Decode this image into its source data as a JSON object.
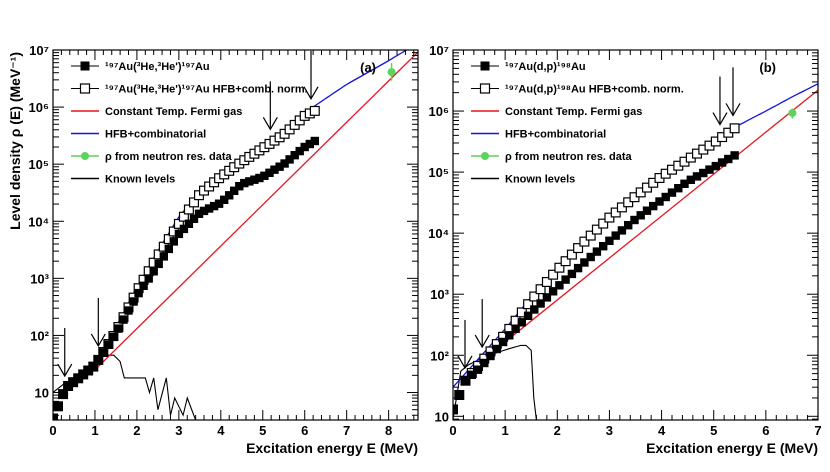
{
  "chart_data": [
    {
      "type": "scatter",
      "panel_label": "(a)",
      "title": "",
      "xlabel": "Excitation energy E (MeV)",
      "ylabel": "Level density ρ (E) (MeV⁻¹)",
      "xlim": [
        0,
        8.7
      ],
      "ylim": [
        3.3,
        10000000
      ],
      "yscale": "log",
      "x_ticks": [
        0,
        1,
        2,
        3,
        4,
        5,
        6,
        7,
        8
      ],
      "y_ticks": [
        {
          "value": 10,
          "label": "10"
        },
        {
          "value": 100,
          "label": "10²"
        },
        {
          "value": 1000,
          "label": "10³"
        },
        {
          "value": 10000,
          "label": "10⁴"
        },
        {
          "value": 100000,
          "label": "10⁵"
        },
        {
          "value": 1000000,
          "label": "10⁶"
        },
        {
          "value": 10000000,
          "label": "10⁷"
        }
      ],
      "legend_position": "top-left",
      "legend": [
        {
          "key": "exp",
          "symbol": "filled-square",
          "color": "#000000",
          "label": "¹⁹⁷Au(³He,³He')¹⁹⁷Au"
        },
        {
          "key": "hfb_norm",
          "symbol": "open-square",
          "color": "#000000",
          "label": "¹⁹⁷Au(³He,³He')¹⁹⁷Au HFB+comb. norm."
        },
        {
          "key": "ctf",
          "symbol": "line",
          "color": "#e8141c",
          "label": "Constant Temp. Fermi gas"
        },
        {
          "key": "hfb",
          "symbol": "line",
          "color": "#1414dc",
          "label": "HFB+combinatorial"
        },
        {
          "key": "rho_n",
          "symbol": "circle",
          "color": "#5ad45a",
          "label": "ρ from neutron res. data"
        },
        {
          "key": "known",
          "symbol": "line",
          "color": "#000000",
          "label": "Known levels"
        }
      ],
      "series": [
        {
          "key": "exp",
          "name": "¹⁹⁷Au(³He,³He')¹⁹⁷Au",
          "marker": "filled-square",
          "x_start": 0.0,
          "x_end": 6.3,
          "points": [
            [
              0,
              3.5
            ],
            [
              0.3,
              12
            ],
            [
              1.0,
              30
            ],
            [
              1.5,
              110
            ],
            [
              2.0,
              500
            ],
            [
              2.5,
              1700
            ],
            [
              3.0,
              6000
            ],
            [
              3.5,
              14000
            ],
            [
              4.0,
              21000
            ],
            [
              4.5,
              45000
            ],
            [
              5.0,
              60000
            ],
            [
              5.5,
              100000
            ],
            [
              6.0,
              200000
            ],
            [
              6.3,
              270000
            ]
          ]
        },
        {
          "key": "hfb_norm",
          "name": "¹⁹⁷Au(³He,³He')¹⁹⁷Au HFB+comb. norm.",
          "marker": "open-square",
          "x_start": 0.0,
          "x_end": 6.3,
          "points": [
            [
              0,
              3.5
            ],
            [
              0.3,
              12
            ],
            [
              1.0,
              30
            ],
            [
              1.5,
              115
            ],
            [
              2.0,
              600
            ],
            [
              2.5,
              2500
            ],
            [
              3.0,
              9000
            ],
            [
              3.5,
              30000
            ],
            [
              4.0,
              60000
            ],
            [
              4.5,
              110000
            ],
            [
              5.0,
              190000
            ],
            [
              5.5,
              330000
            ],
            [
              6.0,
              700000
            ],
            [
              6.3,
              900000
            ]
          ]
        },
        {
          "key": "ctf",
          "name": "Constant Temp. Fermi gas",
          "line": "#e8141c",
          "x": [
            1.0,
            8.7
          ],
          "y": [
            25,
            9200000
          ]
        },
        {
          "key": "hfb",
          "name": "HFB+combinatorial",
          "line": "#1414dc",
          "points": [
            [
              1.0,
              28
            ],
            [
              1.5,
              140
            ],
            [
              2.0,
              700
            ],
            [
              2.5,
              3000
            ],
            [
              3.0,
              12000
            ],
            [
              3.5,
              32000
            ],
            [
              4.0,
              70000
            ],
            [
              5.0,
              190000
            ],
            [
              6.0,
              800000
            ],
            [
              7.0,
              2500000
            ],
            [
              8.0,
              6500000
            ],
            [
              8.6,
              12000000
            ]
          ]
        },
        {
          "key": "rho_n",
          "name": "ρ from neutron res. data",
          "x": 8.07,
          "y": 4100000,
          "err_low": 2900000,
          "err_high": 5900000
        },
        {
          "key": "known",
          "name": "Known levels",
          "points": [
            [
              0.0,
              10
            ],
            [
              0.25,
              14
            ],
            [
              0.4,
              12
            ],
            [
              0.6,
              18
            ],
            [
              0.8,
              25
            ],
            [
              1.0,
              35
            ],
            [
              1.2,
              45
            ],
            [
              1.45,
              45
            ],
            [
              1.6,
              35
            ],
            [
              1.7,
              18
            ],
            [
              2.2,
              18
            ],
            [
              2.3,
              10
            ],
            [
              2.4,
              18
            ],
            [
              2.5,
              5
            ],
            [
              2.7,
              18
            ],
            [
              2.8,
              4
            ],
            [
              2.9,
              8
            ],
            [
              3.1,
              4
            ],
            [
              3.2,
              8
            ],
            [
              3.4,
              3.3
            ]
          ]
        }
      ],
      "arrows_x": [
        0.28,
        1.08,
        5.18,
        6.15
      ]
    },
    {
      "type": "scatter",
      "panel_label": "(b)",
      "title": "",
      "xlabel": "Excitation energy E (MeV)",
      "ylabel": "",
      "xlim": [
        0,
        7
      ],
      "ylim": [
        8.7,
        10000000
      ],
      "yscale": "log",
      "x_ticks": [
        0,
        1,
        2,
        3,
        4,
        5,
        6,
        7
      ],
      "y_ticks": [
        {
          "value": 10,
          "label": "10"
        },
        {
          "value": 100,
          "label": "10²"
        },
        {
          "value": 1000,
          "label": "10³"
        },
        {
          "value": 10000,
          "label": "10⁴"
        },
        {
          "value": 100000,
          "label": "10⁵"
        },
        {
          "value": 1000000,
          "label": "10⁶"
        },
        {
          "value": 10000000,
          "label": "10⁷"
        }
      ],
      "legend_position": "top-left",
      "legend": [
        {
          "key": "exp",
          "symbol": "filled-square",
          "color": "#000000",
          "label": "¹⁹⁷Au(d,p)¹⁹⁸Au"
        },
        {
          "key": "hfb_norm",
          "symbol": "open-square",
          "color": "#000000",
          "label": "¹⁹⁷Au(d,p)¹⁹⁸Au HFB+comb. norm."
        },
        {
          "key": "ctf",
          "symbol": "line",
          "color": "#e8141c",
          "label": "Constant Temp. Fermi gas"
        },
        {
          "key": "hfb",
          "symbol": "line",
          "color": "#1414dc",
          "label": "HFB+combinatorial"
        },
        {
          "key": "rho_n",
          "symbol": "circle",
          "color": "#5ad45a",
          "label": "ρ from neutron res. data"
        },
        {
          "key": "known",
          "symbol": "line",
          "color": "#000000",
          "label": "Known levels"
        }
      ],
      "series": [
        {
          "key": "exp",
          "name": "¹⁹⁷Au(d,p)¹⁹⁸Au",
          "marker": "filled-square",
          "x_start": 0.0,
          "x_end": 5.5,
          "points": [
            [
              0,
              13
            ],
            [
              0.25,
              40
            ],
            [
              0.5,
              60
            ],
            [
              1.0,
              180
            ],
            [
              1.5,
              500
            ],
            [
              2.0,
              1300
            ],
            [
              2.5,
              3200
            ],
            [
              3.0,
              7500
            ],
            [
              3.5,
              17000
            ],
            [
              4.0,
              35000
            ],
            [
              4.5,
              70000
            ],
            [
              5.0,
              120000
            ],
            [
              5.5,
              210000
            ]
          ]
        },
        {
          "key": "hfb_norm",
          "name": "¹⁹⁷Au(d,p)¹⁹⁸Au HFB+comb. norm.",
          "marker": "open-square",
          "x_start": 0.0,
          "x_end": 5.5,
          "points": [
            [
              0,
              13
            ],
            [
              0.25,
              40
            ],
            [
              0.5,
              70
            ],
            [
              1.0,
              220
            ],
            [
              1.5,
              800
            ],
            [
              2.0,
              2500
            ],
            [
              2.5,
              7000
            ],
            [
              3.0,
              18000
            ],
            [
              3.5,
              40000
            ],
            [
              4.0,
              85000
            ],
            [
              4.5,
              160000
            ],
            [
              5.0,
              300000
            ],
            [
              5.5,
              600000
            ]
          ]
        },
        {
          "key": "ctf",
          "name": "Constant Temp. Fermi gas",
          "line": "#e8141c",
          "x": [
            0.5,
            7.0
          ],
          "y": [
            75,
            2200000
          ]
        },
        {
          "key": "hfb",
          "name": "HFB+combinatorial",
          "line": "#1414dc",
          "points": [
            [
              0.0,
              30
            ],
            [
              0.5,
              90
            ],
            [
              1.0,
              270
            ],
            [
              1.5,
              900
            ],
            [
              2.0,
              2800
            ],
            [
              2.5,
              7500
            ],
            [
              3.0,
              19000
            ],
            [
              3.5,
              45000
            ],
            [
              4.0,
              95000
            ],
            [
              4.5,
              180000
            ],
            [
              5.0,
              340000
            ],
            [
              5.5,
              600000
            ],
            [
              6.0,
              1000000
            ],
            [
              6.5,
              1700000
            ],
            [
              7.0,
              2800000
            ]
          ]
        },
        {
          "key": "rho_n",
          "name": "ρ from neutron res. data",
          "x": 6.51,
          "y": 930000,
          "err_low": 750000,
          "err_high": 1100000
        },
        {
          "key": "known",
          "name": "Known levels",
          "points": [
            [
              0.0,
              9
            ],
            [
              0.15,
              55
            ],
            [
              0.3,
              70
            ],
            [
              0.5,
              85
            ],
            [
              0.7,
              100
            ],
            [
              0.9,
              115
            ],
            [
              1.1,
              130
            ],
            [
              1.3,
              145
            ],
            [
              1.4,
              145
            ],
            [
              1.5,
              120
            ],
            [
              1.55,
              20
            ],
            [
              1.6,
              8.7
            ]
          ]
        }
      ],
      "arrows_x": [
        0.23,
        0.56,
        5.12,
        5.37
      ]
    }
  ]
}
